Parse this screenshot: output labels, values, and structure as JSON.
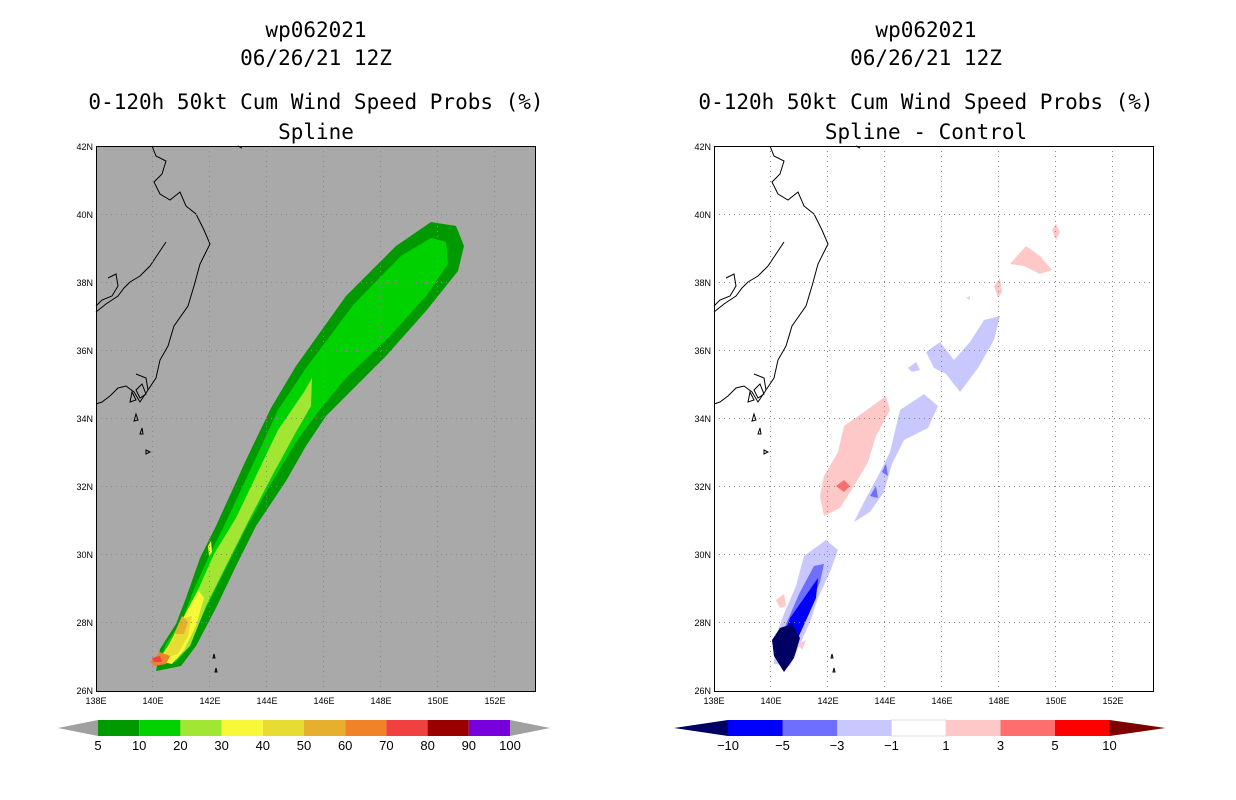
{
  "panels": [
    {
      "id": "left",
      "title_lines": [
        "wp062021",
        "06/26/21 12Z",
        "0-120h 50kt Cum Wind Speed Probs (%)",
        "Spline"
      ],
      "colorbar": {
        "labels": [
          "5",
          "10",
          "20",
          "30",
          "40",
          "50",
          "60",
          "70",
          "80",
          "90",
          "100"
        ],
        "colors": [
          "#009a00",
          "#00d200",
          "#a0e632",
          "#f8f838",
          "#e6dc32",
          "#e6af2d",
          "#f08228",
          "#f04040",
          "#9b0000",
          "#7800dc"
        ],
        "extend_color": "#a0a0a0"
      }
    },
    {
      "id": "right",
      "title_lines": [
        "wp062021",
        "06/26/21 12Z",
        "0-120h 50kt Cum Wind Speed Probs (%)",
        "Spline - Control"
      ],
      "colorbar": {
        "labels": [
          "−10",
          "−5",
          "−3",
          "−1",
          "1",
          "3",
          "5",
          "10"
        ],
        "colors": [
          "#0000ff",
          "#6e6eff",
          "#c8c8ff",
          "#ffffff",
          "#ffc8c8",
          "#ff6e6e",
          "#ff0000"
        ],
        "extend_low": "#000064",
        "extend_high": "#7d0000"
      }
    }
  ],
  "axes": {
    "lat_labels": [
      "42N",
      "40N",
      "38N",
      "36N",
      "34N",
      "32N",
      "30N",
      "28N",
      "26N"
    ],
    "lon_labels": [
      "138E",
      "140E",
      "142E",
      "144E",
      "146E",
      "148E",
      "150E",
      "152E"
    ]
  },
  "colors": {
    "land_bg": "#a9a9a9",
    "grid": "#888888"
  }
}
